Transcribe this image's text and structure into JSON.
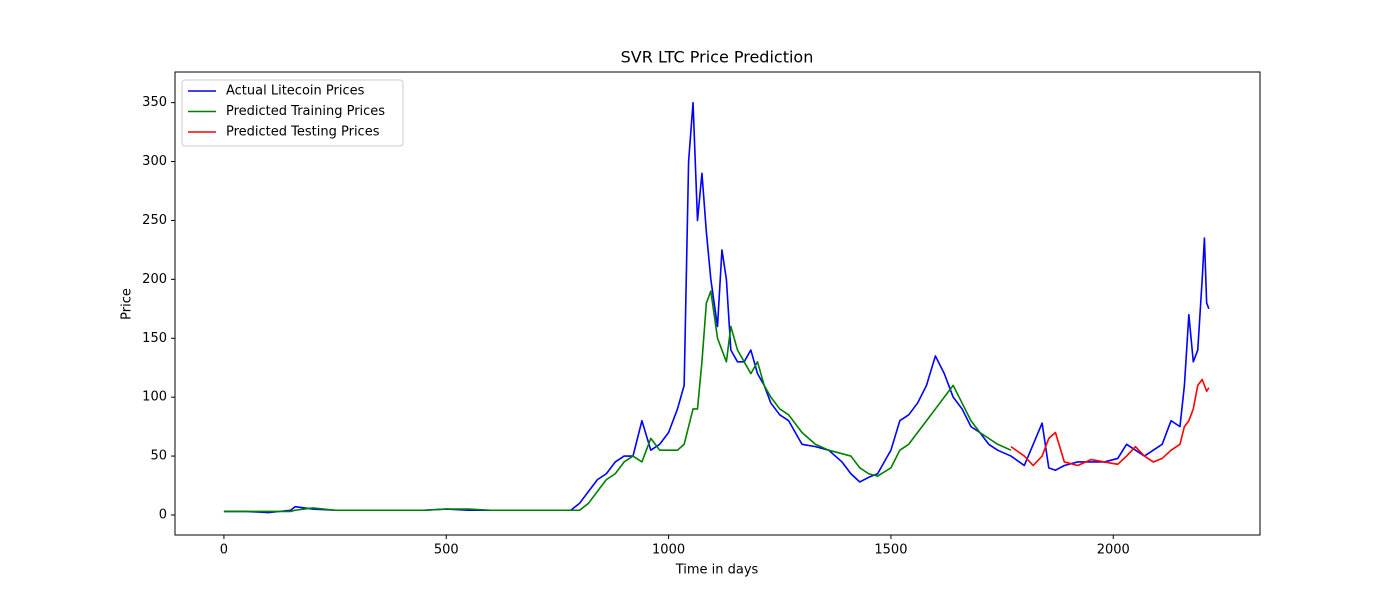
{
  "chart_data": {
    "type": "line",
    "title": "SVR LTC Price Prediction",
    "x_label": "Time in days",
    "y_label": "Price",
    "x": [
      0,
      50,
      100,
      150,
      160,
      200,
      250,
      300,
      350,
      400,
      450,
      500,
      550,
      600,
      650,
      700,
      750,
      780,
      800,
      820,
      840,
      860,
      880,
      900,
      920,
      940,
      960,
      980,
      1000,
      1020,
      1035,
      1045,
      1055,
      1065,
      1075,
      1085,
      1095,
      1110,
      1120,
      1130,
      1140,
      1155,
      1170,
      1185,
      1200,
      1215,
      1230,
      1250,
      1270,
      1300,
      1330,
      1360,
      1390,
      1410,
      1430,
      1450,
      1470,
      1500,
      1520,
      1540,
      1560,
      1580,
      1600,
      1620,
      1640,
      1660,
      1680,
      1700,
      1720,
      1740,
      1770,
      1800,
      1820,
      1840,
      1855,
      1870,
      1890,
      1920,
      1950,
      1980,
      2010,
      2030,
      2050,
      2070,
      2090,
      2110,
      2130,
      2150,
      2160,
      2170,
      2180,
      2190,
      2200,
      2205,
      2210,
      2215
    ],
    "series": [
      {
        "name": "Actual Litecoin Prices",
        "color": "#0000ff",
        "values": [
          3,
          3,
          2,
          4,
          7,
          5,
          4,
          4,
          4,
          4,
          4,
          5,
          4,
          4,
          4,
          4,
          4,
          4,
          10,
          20,
          30,
          35,
          45,
          50,
          50,
          80,
          55,
          60,
          70,
          90,
          110,
          300,
          350,
          250,
          290,
          240,
          200,
          160,
          225,
          200,
          140,
          130,
          130,
          140,
          120,
          110,
          95,
          85,
          80,
          60,
          58,
          55,
          45,
          35,
          28,
          32,
          35,
          55,
          80,
          85,
          95,
          110,
          135,
          120,
          100,
          90,
          75,
          70,
          60,
          55,
          50,
          42,
          60,
          78,
          40,
          38,
          42,
          45,
          45,
          45,
          48,
          60,
          55,
          50,
          55,
          60,
          80,
          75,
          110,
          170,
          130,
          140,
          200,
          235,
          180,
          175
        ]
      },
      {
        "name": "Predicted Training Prices",
        "color": "#008000",
        "values": [
          3,
          3,
          3,
          3,
          4,
          6,
          4,
          4,
          4,
          4,
          4,
          5,
          5,
          4,
          4,
          4,
          4,
          4,
          4,
          10,
          20,
          30,
          35,
          45,
          50,
          45,
          65,
          55,
          55,
          55,
          60,
          75,
          90,
          90,
          130,
          180,
          190,
          150,
          140,
          130,
          160,
          140,
          130,
          120,
          130,
          110,
          100,
          90,
          85,
          70,
          60,
          55,
          52,
          50,
          40,
          35,
          33,
          40,
          55,
          60,
          70,
          80,
          90,
          100,
          110,
          95,
          80,
          70,
          65,
          60,
          55,
          null,
          null,
          null,
          null,
          null,
          null,
          null,
          null,
          null,
          null,
          null,
          null,
          null,
          null,
          null,
          null,
          null,
          null,
          null,
          null,
          null,
          null,
          null,
          null,
          null
        ]
      },
      {
        "name": "Predicted Testing Prices",
        "color": "#ff0000",
        "values": [
          null,
          null,
          null,
          null,
          null,
          null,
          null,
          null,
          null,
          null,
          null,
          null,
          null,
          null,
          null,
          null,
          null,
          null,
          null,
          null,
          null,
          null,
          null,
          null,
          null,
          null,
          null,
          null,
          null,
          null,
          null,
          null,
          null,
          null,
          null,
          null,
          null,
          null,
          null,
          null,
          null,
          null,
          null,
          null,
          null,
          null,
          null,
          null,
          null,
          null,
          null,
          null,
          null,
          null,
          null,
          null,
          null,
          null,
          null,
          null,
          null,
          null,
          null,
          null,
          null,
          null,
          null,
          null,
          null,
          null,
          58,
          50,
          42,
          50,
          65,
          70,
          45,
          42,
          47,
          45,
          43,
          50,
          58,
          50,
          45,
          48,
          55,
          60,
          75,
          80,
          90,
          110,
          115,
          110,
          105,
          108
        ]
      }
    ],
    "xlim": [
      -110,
      2330
    ],
    "ylim": [
      -17,
      376
    ],
    "xticks": [
      0,
      500,
      1000,
      1500,
      2000
    ],
    "yticks": [
      0,
      50,
      100,
      150,
      200,
      250,
      300,
      350
    ],
    "grid": false,
    "legend": "upper-left"
  }
}
